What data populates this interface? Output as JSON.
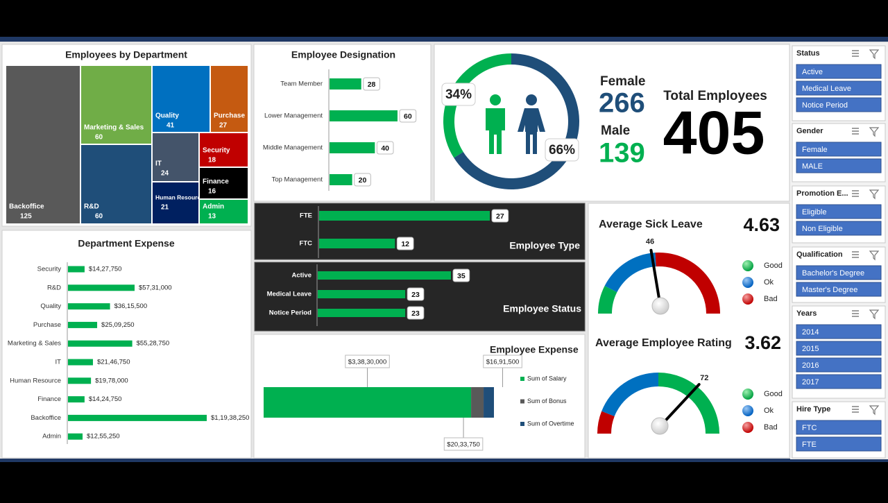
{
  "chart_data": [
    {
      "type": "treemap",
      "title": "Employees by Department",
      "categories": [
        "Backoffice",
        "Marketing & Sales",
        "R&D",
        "Quality",
        "Purchase",
        "IT",
        "Human Resource",
        "Security",
        "Finance",
        "Admin"
      ],
      "values": [
        125,
        60,
        60,
        41,
        27,
        24,
        21,
        18,
        16,
        13
      ],
      "colors": [
        "#595959",
        "#70ad47",
        "#1f4e79",
        "#0070c0",
        "#c55a11",
        "#44546a",
        "#002060",
        "#c00000",
        "#000000",
        "#00b050"
      ]
    },
    {
      "type": "bar",
      "title": "Employee Designation",
      "categories": [
        "Team Member",
        "Lower Management",
        "Middle Management",
        "Top Management"
      ],
      "values": [
        28,
        60,
        40,
        20
      ],
      "color": "#00b050"
    },
    {
      "type": "pie",
      "values": [
        34,
        66
      ],
      "value_labels": [
        "34%",
        "66%"
      ],
      "colors": [
        "#00b050",
        "#1f4e79"
      ]
    },
    {
      "type": "bar",
      "title": "Employee Type",
      "categories": [
        "FTE",
        "FTC"
      ],
      "values": [
        27,
        12
      ],
      "color": "#00b050"
    },
    {
      "type": "bar",
      "title": "Employee Status",
      "categories": [
        "Active",
        "Medical Leave",
        "Notice Period"
      ],
      "values": [
        35,
        23,
        23
      ],
      "color": "#00b050"
    },
    {
      "type": "bar",
      "title": "Department Expense",
      "categories": [
        "Security",
        "R&D",
        "Quality",
        "Purchase",
        "Marketing & Sales",
        "IT",
        "Human Resource",
        "Finance",
        "Backoffice",
        "Admin"
      ],
      "values": [
        1427750,
        5731000,
        3615500,
        2509250,
        5528750,
        2146750,
        1978000,
        1424750,
        11938250,
        1255250
      ],
      "value_labels": [
        "$14,27,750",
        "$57,31,000",
        "$36,15,500",
        "$25,09,250",
        "$55,28,750",
        "$21,46,750",
        "$19,78,000",
        "$14,24,750",
        "$1,19,38,250",
        "$12,55,250"
      ],
      "color": "#00b050"
    },
    {
      "type": "bar",
      "title": "Employee Expense",
      "stacked": true,
      "series": [
        {
          "name": "Sum of Salary",
          "color": "#00b050",
          "values": [
            33830000
          ],
          "value_labels": [
            "$3,38,30,000"
          ]
        },
        {
          "name": "Sum of Bonus",
          "color": "#595959",
          "values": [
            2033750
          ],
          "value_labels": [
            "$20,33,750"
          ]
        },
        {
          "name": "Sum of Overtime",
          "color": "#1f4e79",
          "values": [
            1691500
          ],
          "value_labels": [
            "$16,91,500"
          ]
        }
      ]
    },
    {
      "type": "gauge",
      "title": "Average Sick Leave",
      "summary": 4.63,
      "value": 46,
      "ylim": [
        0,
        100
      ],
      "bands": [
        {
          "name": "Good",
          "color": "#00b050",
          "value": 15
        },
        {
          "name": "Ok",
          "color": "#0070c0",
          "value": 33
        },
        {
          "name": "Bad",
          "color": "#c00000",
          "value": 52
        }
      ]
    },
    {
      "type": "gauge",
      "title": "Average Employee Rating",
      "summary": 3.62,
      "value": 72,
      "ylim": [
        0,
        100
      ],
      "bands": [
        {
          "name": "Bad",
          "color": "#c00000",
          "value": 12
        },
        {
          "name": "Ok",
          "color": "#0070c0",
          "value": 38
        },
        {
          "name": "Good",
          "color": "#00b050",
          "value": 50
        }
      ]
    }
  ],
  "kpi": {
    "female_label": "Female",
    "female": 266,
    "male_label": "Male",
    "male": 139,
    "total_label": "Total Employees",
    "total": 405
  },
  "slicers": [
    {
      "title": "Status",
      "items": [
        "Active",
        "Medical Leave",
        "Notice Period"
      ]
    },
    {
      "title": "Gender",
      "items": [
        "Female",
        "MALE"
      ]
    },
    {
      "title": "Promotion E...",
      "items": [
        "Eligible",
        "Non Eligible"
      ]
    },
    {
      "title": "Qualification",
      "items": [
        "Bachelor's Degree",
        "Master's Degree"
      ]
    },
    {
      "title": "Years",
      "items": [
        "2014",
        "2015",
        "2016",
        "2017"
      ]
    },
    {
      "title": "Hire Type",
      "items": [
        "FTC",
        "FTE"
      ]
    }
  ]
}
